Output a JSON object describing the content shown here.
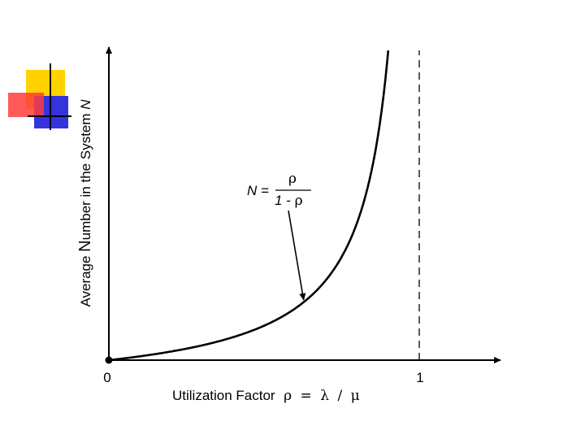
{
  "decoration": {
    "colors": {
      "yellow": "#ffd200",
      "red": "#ff3c3c",
      "blue": "#3434dc"
    }
  },
  "chart_data": {
    "type": "line",
    "function": "N = rho / (1 - rho)",
    "xlim": [
      0,
      1
    ],
    "ylim": [
      0,
      9
    ],
    "x_ticks": [
      "0",
      "1"
    ],
    "asymptote_x": 1,
    "xlabel": {
      "text": "Utilization Factor",
      "symbol_rho": "ρ",
      "eq": "=",
      "symbol_lambda": "λ",
      "slash": "/",
      "symbol_mu": "μ"
    },
    "ylabel": {
      "prefix": "Average ",
      "n_big": "N",
      "middle": "umber in the System ",
      "n_italic": "N"
    },
    "annotation": {
      "lhs": "N =",
      "numerator": "ρ",
      "denominator_prefix": "1 - ",
      "denominator_rho": "ρ",
      "points_to_x": 0.63
    },
    "series": [
      {
        "values": [
          [
            0,
            0
          ],
          [
            0.1,
            0.111
          ],
          [
            0.2,
            0.25
          ],
          [
            0.3,
            0.429
          ],
          [
            0.4,
            0.667
          ],
          [
            0.5,
            1.0
          ],
          [
            0.6,
            1.5
          ],
          [
            0.7,
            2.333
          ],
          [
            0.8,
            4.0
          ],
          [
            0.85,
            5.667
          ],
          [
            0.9,
            9.0
          ]
        ]
      }
    ]
  }
}
